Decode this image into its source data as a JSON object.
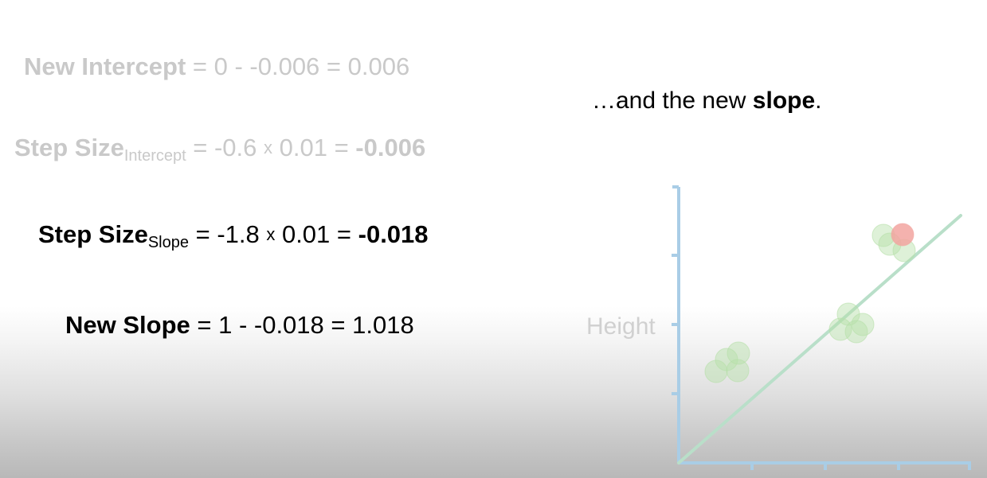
{
  "equations": {
    "new_intercept": {
      "label": "New Intercept",
      "expr": " = 0 - -0.006 = 0.006"
    },
    "step_size_intercept": {
      "label": "Step Size",
      "subscript": "Intercept",
      "expr_a": " = -0.6 ",
      "times": "x",
      "expr_b": " 0.01 = ",
      "result": "-0.006"
    },
    "step_size_slope": {
      "label": "Step Size",
      "subscript": "Slope",
      "expr_a": " = -1.8 ",
      "times": "x",
      "expr_b": " 0.01 = ",
      "result": "-0.018"
    },
    "new_slope": {
      "label": "New Slope",
      "expr": " = 1 - -0.018 = 1.018"
    }
  },
  "caption": {
    "prefix": "…and the new ",
    "bold": "slope",
    "suffix": "."
  },
  "chart": {
    "ylabel": "Height",
    "axis_color": "#a9cde6",
    "line_color": "#b9dfc9",
    "point_color": "#b5dfa8",
    "highlight_color": "#f2a5a0",
    "points": [
      {
        "x": 0.17,
        "y": 0.33
      },
      {
        "x": 0.22,
        "y": 0.38
      },
      {
        "x": 0.27,
        "y": 0.38
      },
      {
        "x": 0.27,
        "y": 0.33
      },
      {
        "x": 0.57,
        "y": 0.48
      },
      {
        "x": 0.61,
        "y": 0.52
      },
      {
        "x": 0.64,
        "y": 0.48
      },
      {
        "x": 0.68,
        "y": 0.5
      },
      {
        "x": 0.72,
        "y": 0.78
      },
      {
        "x": 0.74,
        "y": 0.8
      },
      {
        "x": 0.77,
        "y": 0.77
      },
      {
        "x": 0.78,
        "y": 0.8,
        "highlight": true
      }
    ],
    "line": {
      "intercept": 0.006,
      "slope": 1.018
    }
  }
}
